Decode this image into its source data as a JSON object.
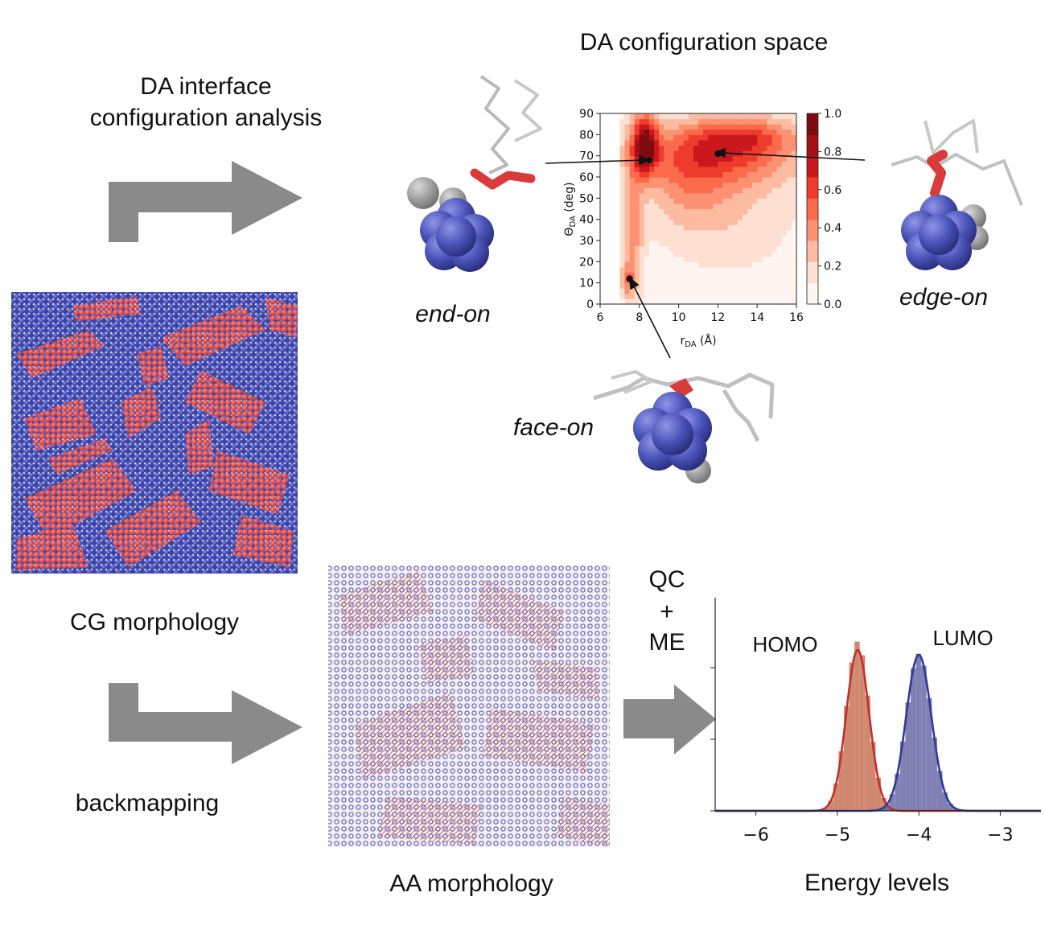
{
  "top_title": "DA configuration space",
  "arrow1_label": {
    "line1": "DA interface",
    "line2": "configuration analysis"
  },
  "cg_label": "CG morphology",
  "backmapping_label": "backmapping",
  "aa_label": "AA morphology",
  "qc_me_label": {
    "line1": "QC",
    "line2": "+",
    "line3": "ME"
  },
  "config_labels": {
    "end_on": "end-on",
    "edge_on": "edge-on",
    "face_on": "face-on"
  },
  "colors": {
    "donor_red": "#d93b3b",
    "acceptor_blue": "#4a52b8",
    "arrow_gray": "#8a8a8a",
    "homo": "#c0302b",
    "lumo": "#2f3a92"
  },
  "chart_data": [
    {
      "type": "heatmap",
      "title": "",
      "xlabel_main": "r",
      "xlabel_sub": "DA",
      "xlabel_unit": " (Å)",
      "ylabel_main": "Θ",
      "ylabel_sub": "DA",
      "ylabel_unit": " (deg)",
      "xlim": [
        6,
        16
      ],
      "ylim": [
        0,
        90
      ],
      "x_ticks": [
        "6",
        "8",
        "10",
        "12",
        "14",
        "16"
      ],
      "y_ticks": [
        "0",
        "10",
        "20",
        "30",
        "40",
        "50",
        "60",
        "70",
        "80",
        "90"
      ],
      "colorbar_ticks": [
        "0.0",
        "0.2",
        "0.4",
        "0.6",
        "0.8",
        "1.0"
      ],
      "colorbar_range": [
        0,
        1
      ],
      "marked_points": [
        {
          "name": "face-on",
          "x": 7.5,
          "y": 12
        },
        {
          "name": "end-on",
          "x": 8.5,
          "y": 68
        },
        {
          "name": "edge-on",
          "x": 12,
          "y": 71
        }
      ]
    },
    {
      "type": "histogram",
      "xlabel": "Energy levels",
      "xlim": [
        -6.5,
        -2.5
      ],
      "x_ticks": [
        "−6",
        "−5",
        "−4",
        "−3"
      ],
      "series": [
        {
          "name": "HOMO",
          "mean": -4.75,
          "sd": 0.14
        },
        {
          "name": "LUMO",
          "mean": -4.0,
          "sd": 0.155
        }
      ]
    }
  ]
}
